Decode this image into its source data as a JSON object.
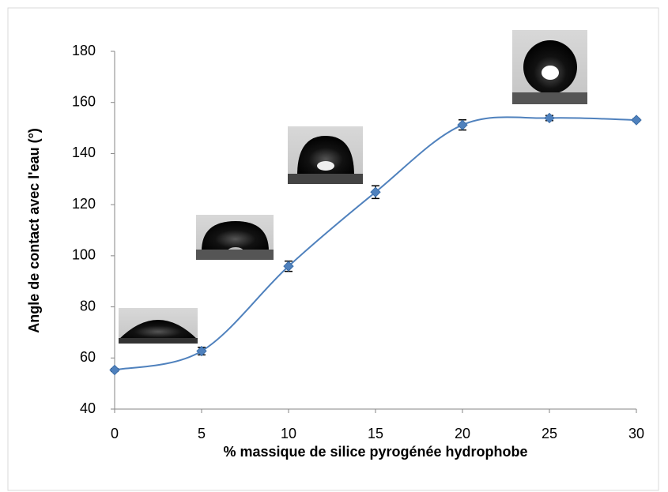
{
  "chart_data": {
    "type": "line",
    "xlabel": "% massique de silice pyrogénée hydrophobe",
    "ylabel": "Angle de contact avec l'eau (°)",
    "x": [
      0,
      5,
      10,
      15,
      20,
      25,
      30
    ],
    "series": [
      {
        "color": "#4f81bd",
        "values": [
          55.3,
          62.7,
          95.9,
          124.9,
          151.2,
          153.9,
          153.1
        ],
        "errors": [
          0.5,
          1.5,
          2,
          2.5,
          2,
          1,
          0.5
        ]
      }
    ],
    "xlim": [
      0,
      30
    ],
    "xticks": [
      0,
      5,
      10,
      15,
      20,
      25,
      30
    ],
    "ylim": [
      40,
      180
    ],
    "yticks": [
      40,
      60,
      80,
      100,
      120,
      140,
      160,
      180
    ],
    "grid": false,
    "smooth": true
  }
}
